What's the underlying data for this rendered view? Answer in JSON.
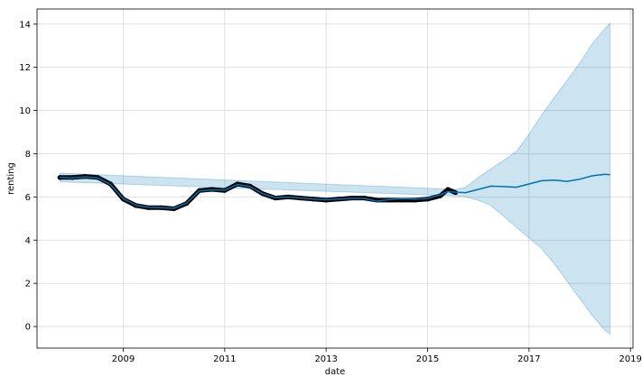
{
  "chart_data": {
    "type": "line",
    "title": "",
    "xlabel": "date",
    "ylabel": "renting",
    "grid": true,
    "xlim": [
      2007.3,
      2019.05
    ],
    "ylim": [
      -1.0,
      14.7
    ],
    "x_ticks": [
      2009,
      2011,
      2013,
      2015,
      2017,
      2019
    ],
    "x_tick_labels": [
      "2009",
      "2011",
      "2013",
      "2015",
      "2017",
      "2019"
    ],
    "y_ticks": [
      0,
      2,
      4,
      6,
      8,
      10,
      12,
      14
    ],
    "y_tick_labels": [
      "0",
      "2",
      "4",
      "6",
      "8",
      "10",
      "12",
      "14"
    ],
    "colors": {
      "observed": "#000000",
      "forecast": "#0072B2",
      "uncertainty_fill": "#0072B2",
      "grid": "#d9d9d9",
      "axes": "#000000"
    },
    "series": [
      {
        "role": "observed",
        "style": "points",
        "x": [
          2007.75,
          2008.0,
          2008.25,
          2008.5,
          2008.75,
          2009.0,
          2009.25,
          2009.5,
          2009.75,
          2010.0,
          2010.25,
          2010.5,
          2010.75,
          2011.0,
          2011.25,
          2011.5,
          2011.75,
          2012.0,
          2012.25,
          2012.5,
          2012.75,
          2013.0,
          2013.25,
          2013.5,
          2013.75,
          2014.0,
          2014.25,
          2014.5,
          2014.75,
          2015.0,
          2015.25,
          2015.4,
          2015.55
        ],
        "values": [
          6.9,
          6.9,
          6.95,
          6.9,
          6.6,
          5.9,
          5.6,
          5.5,
          5.5,
          5.45,
          5.7,
          6.3,
          6.35,
          6.3,
          6.6,
          6.5,
          6.15,
          5.95,
          6.0,
          5.95,
          5.9,
          5.85,
          5.9,
          5.95,
          5.95,
          5.85,
          5.85,
          5.85,
          5.85,
          5.9,
          6.05,
          6.35,
          6.2
        ]
      },
      {
        "role": "forecast",
        "style": "line",
        "x": [
          2007.75,
          2008.0,
          2008.25,
          2008.5,
          2008.75,
          2009.0,
          2009.25,
          2009.5,
          2009.75,
          2010.0,
          2010.25,
          2010.5,
          2010.75,
          2011.0,
          2011.25,
          2011.5,
          2011.75,
          2012.0,
          2012.25,
          2012.5,
          2012.75,
          2013.0,
          2013.25,
          2013.5,
          2013.75,
          2014.0,
          2014.25,
          2014.5,
          2014.75,
          2015.0,
          2015.25,
          2015.4,
          2015.55,
          2015.75,
          2016.0,
          2016.25,
          2016.5,
          2016.75,
          2017.0,
          2017.25,
          2017.5,
          2017.75,
          2018.0,
          2018.25,
          2018.5,
          2018.6
        ],
        "values": [
          6.9,
          6.88,
          6.93,
          6.88,
          6.58,
          5.92,
          5.62,
          5.52,
          5.5,
          5.47,
          5.72,
          6.28,
          6.33,
          6.31,
          6.58,
          6.48,
          6.15,
          5.97,
          6.0,
          5.95,
          5.9,
          5.87,
          5.9,
          5.93,
          5.93,
          5.8,
          5.88,
          5.92,
          5.9,
          5.93,
          6.1,
          6.25,
          6.22,
          6.2,
          6.35,
          6.5,
          6.48,
          6.45,
          6.6,
          6.75,
          6.78,
          6.72,
          6.82,
          6.98,
          7.05,
          7.03
        ]
      }
    ],
    "uncertainty_band": {
      "x": [
        2007.75,
        2015.55,
        2015.75,
        2016.0,
        2016.25,
        2016.5,
        2016.75,
        2017.0,
        2017.25,
        2017.5,
        2017.75,
        2018.0,
        2018.25,
        2018.5,
        2018.6
      ],
      "lower": [
        6.7,
        6.05,
        6.0,
        5.85,
        5.6,
        5.1,
        4.6,
        4.1,
        3.6,
        2.9,
        2.1,
        1.3,
        0.5,
        -0.2,
        -0.35
      ],
      "upper": [
        7.1,
        6.35,
        6.45,
        6.9,
        7.3,
        7.7,
        8.1,
        8.9,
        9.8,
        10.6,
        11.4,
        12.2,
        13.1,
        13.8,
        14.05
      ]
    }
  }
}
